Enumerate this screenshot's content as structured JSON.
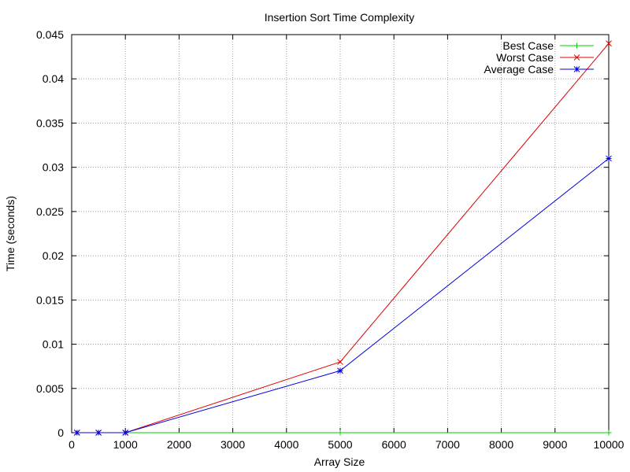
{
  "chart_data": {
    "type": "line",
    "title": "Insertion Sort Time Complexity",
    "xlabel": "Array Size",
    "ylabel": "Time (seconds)",
    "xlim": [
      0,
      10000
    ],
    "ylim": [
      0,
      0.045
    ],
    "x_ticks": [
      0,
      1000,
      2000,
      3000,
      4000,
      5000,
      6000,
      7000,
      8000,
      9000,
      10000
    ],
    "x_tick_labels": [
      "0",
      "1000",
      "2000",
      "3000",
      "4000",
      "5000",
      "6000",
      "7000",
      "8000",
      "9000",
      "10000"
    ],
    "y_ticks": [
      0,
      0.005,
      0.01,
      0.015,
      0.02,
      0.025,
      0.03,
      0.035,
      0.04,
      0.045
    ],
    "y_tick_labels": [
      "0",
      "0.005",
      "0.01",
      "0.015",
      "0.02",
      "0.025",
      "0.03",
      "0.035",
      "0.04",
      "0.045"
    ],
    "grid": true,
    "legend_position": "top-right",
    "series": [
      {
        "name": "Best Case",
        "color": "#00cc00",
        "marker": "plus",
        "x": [
          100,
          500,
          1000,
          5000,
          10000
        ],
        "y": [
          0,
          0,
          0,
          0,
          0
        ]
      },
      {
        "name": "Worst Case",
        "color": "#e00000",
        "marker": "cross",
        "x": [
          100,
          500,
          1000,
          5000,
          10000
        ],
        "y": [
          0,
          0,
          0,
          0.008,
          0.044
        ]
      },
      {
        "name": "Average Case",
        "color": "#0000e0",
        "marker": "star",
        "x": [
          100,
          500,
          1000,
          5000,
          10000
        ],
        "y": [
          0,
          0,
          0,
          0.007,
          0.031
        ]
      }
    ]
  }
}
